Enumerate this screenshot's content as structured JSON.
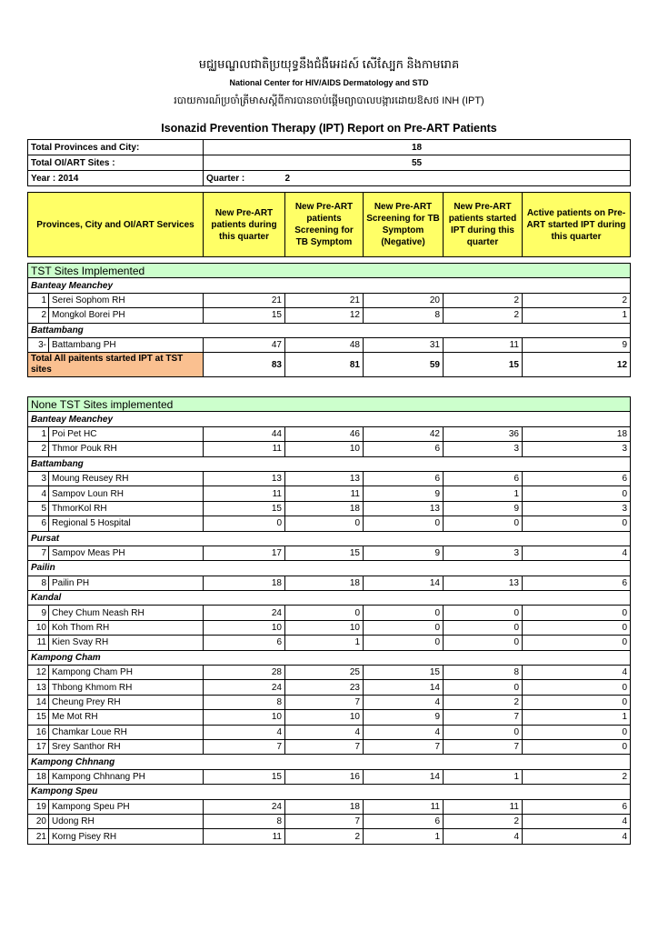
{
  "header": {
    "khmer_line1": "មជ្ឈមណ្ឌលជាតិប្រយុទ្ធនឹងជំងឺអេដស៍ សើស្បែក និងកាមរោគ",
    "english_line1": "National Center for HIV/AIDS Dermatology and STD",
    "khmer_line2": "របាយការណ៍ប្រចាំត្រីមាសស្តីពីការបានចាប់ផ្តើមព្យាបាលបង្ការដោយឱសថ INH (IPT)",
    "title": "Isonazid Prevention Therapy (IPT) Report on Pre-ART Patients"
  },
  "info": {
    "provinces_label": "Total Provinces and City:",
    "provinces_value": "18",
    "sites_label": "Total OI/ART Sites :",
    "sites_value": "55",
    "year_label": "Year : 2014",
    "quarter_label": "Quarter :",
    "quarter_value": "2"
  },
  "columns": [
    "Provinces, City and OI/ART Services",
    "New Pre-ART patients during this quarter",
    "New Pre-ART patients Screening for TB Symptom",
    "New Pre-ART Screening for TB Symptom (Negative)",
    "New Pre-ART patients started IPT during this quarter",
    "Active patients on Pre-ART started IPT during this quarter"
  ],
  "colors": {
    "header_bg": "#ffff66",
    "section_bg": "#ccffcc",
    "total_bg": "#fac090"
  },
  "tst": {
    "title": "TST Sites Implemented",
    "groups": [
      {
        "province": "Banteay Meanchey",
        "sites": [
          {
            "no": "1",
            "name": "Serei Sophom RH",
            "values": [
              21,
              21,
              20,
              2,
              2
            ]
          },
          {
            "no": "2",
            "name": "Mongkol Borei PH",
            "values": [
              15,
              12,
              8,
              2,
              1
            ]
          }
        ]
      },
      {
        "province": "Battambang",
        "sites": [
          {
            "no": "3-",
            "name": "Battambang PH",
            "values": [
              47,
              48,
              31,
              11,
              9
            ]
          }
        ]
      }
    ],
    "total_label": "Total All paitents started IPT at TST sites",
    "total_values": [
      83,
      81,
      59,
      15,
      12
    ]
  },
  "none_tst": {
    "title": "None TST Sites implemented",
    "groups": [
      {
        "province": "Banteay Meanchey",
        "sites": [
          {
            "no": "1",
            "name": "Poi Pet HC",
            "values": [
              44,
              46,
              42,
              36,
              18
            ]
          },
          {
            "no": "2",
            "name": "Thmor Pouk RH",
            "values": [
              11,
              10,
              6,
              3,
              3
            ]
          }
        ]
      },
      {
        "province": "Battambang",
        "sites": [
          {
            "no": "3",
            "name": "Moung Reusey RH",
            "values": [
              13,
              13,
              6,
              6,
              6
            ]
          },
          {
            "no": "4",
            "name": "Sampov Loun RH",
            "values": [
              11,
              11,
              9,
              1,
              0
            ]
          },
          {
            "no": "5",
            "name": "ThmorKol RH",
            "values": [
              15,
              18,
              13,
              9,
              3
            ]
          },
          {
            "no": "6",
            "name": "Regional 5 Hospital",
            "values": [
              0,
              0,
              0,
              0,
              0
            ]
          }
        ]
      },
      {
        "province": "Pursat",
        "sites": [
          {
            "no": "7",
            "name": "Sampov Meas PH",
            "values": [
              17,
              15,
              9,
              3,
              4
            ]
          }
        ]
      },
      {
        "province": "Pailin",
        "sites": [
          {
            "no": "8",
            "name": "Pailin PH",
            "values": [
              18,
              18,
              14,
              13,
              6
            ]
          }
        ]
      },
      {
        "province": "Kandal",
        "sites": [
          {
            "no": "9",
            "name": "Chey Chum Neash RH",
            "values": [
              24,
              0,
              0,
              0,
              0
            ]
          },
          {
            "no": "10",
            "name": "Koh Thom RH",
            "values": [
              10,
              10,
              0,
              0,
              0
            ]
          },
          {
            "no": "11",
            "name": "Kien Svay RH",
            "values": [
              6,
              1,
              0,
              0,
              0
            ]
          }
        ]
      },
      {
        "province": "Kampong Cham",
        "sites": [
          {
            "no": "12",
            "name": "Kampong Cham PH",
            "values": [
              28,
              25,
              15,
              8,
              4
            ]
          },
          {
            "no": "13",
            "name": "Thbong Khmom RH",
            "values": [
              24,
              23,
              14,
              0,
              0
            ]
          },
          {
            "no": "14",
            "name": "Cheung Prey RH",
            "values": [
              8,
              7,
              4,
              2,
              0
            ]
          },
          {
            "no": "15",
            "name": "Me Mot RH",
            "values": [
              10,
              10,
              9,
              7,
              1
            ]
          },
          {
            "no": "16",
            "name": "Chamkar Loue RH",
            "values": [
              4,
              4,
              4,
              0,
              0
            ]
          },
          {
            "no": "17",
            "name": "Srey Santhor RH",
            "values": [
              7,
              7,
              7,
              7,
              0
            ]
          }
        ]
      },
      {
        "province": "Kampong Chhnang",
        "sites": [
          {
            "no": "18",
            "name": "Kampong Chhnang PH",
            "values": [
              15,
              16,
              14,
              1,
              2
            ]
          }
        ]
      },
      {
        "province": "Kampong Speu",
        "sites": [
          {
            "no": "19",
            "name": "Kampong Speu PH",
            "values": [
              24,
              18,
              11,
              11,
              6
            ]
          },
          {
            "no": "20",
            "name": "Udong RH",
            "values": [
              8,
              7,
              6,
              2,
              4
            ]
          },
          {
            "no": "21",
            "name": "Korng Pisey RH",
            "values": [
              11,
              2,
              1,
              4,
              4
            ]
          }
        ]
      }
    ]
  }
}
